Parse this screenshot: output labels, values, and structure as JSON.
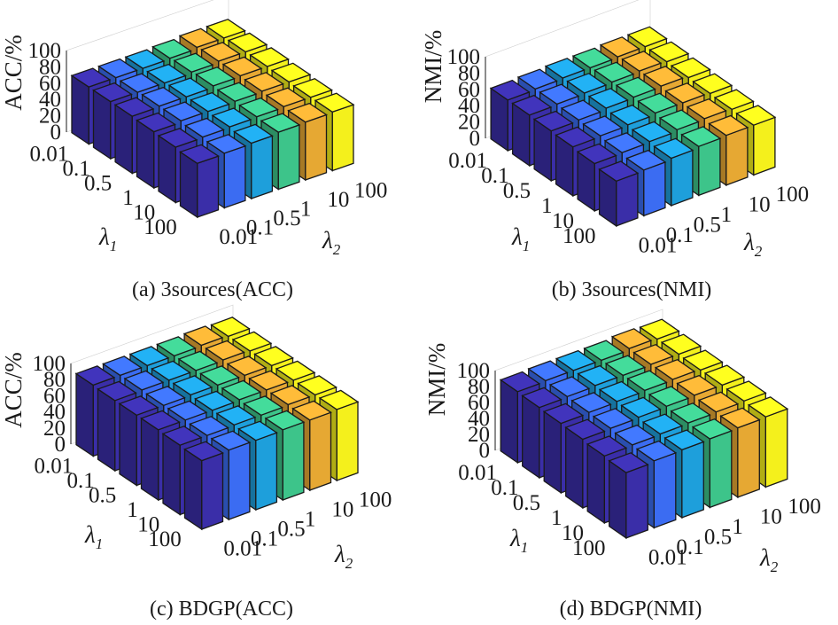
{
  "figure": {
    "palette": [
      "#3a2ea8",
      "#3b6cf2",
      "#1e9fdb",
      "#3dc48a",
      "#e6a833",
      "#f4f01c"
    ],
    "edge_color": "#1a1a1a",
    "colors_by": "lambda2"
  },
  "chart_data": [
    {
      "id": "a",
      "type": "bar3d",
      "caption": "(a) 3sources(ACC)",
      "zlabel": "ACC/%",
      "zlim": [
        0,
        100
      ],
      "zticks": [
        "0",
        "20",
        "40",
        "60",
        "80",
        "100"
      ],
      "x_name": "λ",
      "x_sub": "1",
      "y_name": "λ",
      "y_sub": "2",
      "lambda1": [
        "0.01",
        "0.1",
        "0.5",
        "1",
        "10",
        "100"
      ],
      "lambda2": [
        "0.01",
        "0.1",
        "0.5",
        "1",
        "10",
        "100"
      ],
      "values": [
        [
          70,
          70,
          70,
          71,
          73,
          73
        ],
        [
          70,
          70,
          70,
          72,
          74,
          74
        ],
        [
          70,
          71,
          71,
          73,
          74,
          74
        ],
        [
          69,
          71,
          71,
          72,
          73,
          73
        ],
        [
          68,
          69,
          70,
          71,
          72,
          72
        ],
        [
          66,
          67,
          68,
          70,
          71,
          72
        ]
      ]
    },
    {
      "id": "b",
      "type": "bar3d",
      "caption": "(b) 3sources(NMI)",
      "zlabel": "NMI/%",
      "zlim": [
        0,
        100
      ],
      "zticks": [
        "0",
        "20",
        "40",
        "60",
        "80",
        "100"
      ],
      "x_name": "λ",
      "x_sub": "1",
      "y_name": "λ",
      "y_sub": "2",
      "lambda1": [
        "0.01",
        "0.1",
        "0.5",
        "1",
        "10",
        "100"
      ],
      "lambda2": [
        "0.01",
        "0.1",
        "0.5",
        "1",
        "10",
        "100"
      ],
      "values": [
        [
          62,
          63,
          64,
          64,
          65,
          65
        ],
        [
          62,
          63,
          64,
          65,
          66,
          65
        ],
        [
          61,
          62,
          64,
          65,
          66,
          64
        ],
        [
          60,
          61,
          62,
          64,
          64,
          63
        ],
        [
          58,
          59,
          60,
          62,
          63,
          62
        ],
        [
          55,
          56,
          58,
          60,
          61,
          61
        ]
      ]
    },
    {
      "id": "c",
      "type": "bar3d",
      "caption": "(c) BDGP(ACC)",
      "zlabel": "ACC/%",
      "zlim": [
        0,
        100
      ],
      "zticks": [
        "0",
        "20",
        "40",
        "60",
        "80",
        "100"
      ],
      "x_name": "λ",
      "x_sub": "1",
      "y_name": "λ",
      "y_sub": "2",
      "lambda1": [
        "0.01",
        "0.1",
        "0.5",
        "1",
        "10",
        "100"
      ],
      "lambda2": [
        "0.01",
        "0.1",
        "0.5",
        "1",
        "10",
        "100"
      ],
      "values": [
        [
          88,
          88,
          88,
          88,
          89,
          88
        ],
        [
          87,
          88,
          88,
          88,
          89,
          88
        ],
        [
          87,
          87,
          88,
          88,
          88,
          88
        ],
        [
          87,
          87,
          87,
          88,
          88,
          88
        ],
        [
          86,
          86,
          87,
          87,
          88,
          88
        ],
        [
          85,
          86,
          86,
          87,
          87,
          88
        ]
      ]
    },
    {
      "id": "d",
      "type": "bar3d",
      "caption": "(d) BDGP(NMI)",
      "zlabel": "NMI/%",
      "zlim": [
        0,
        100
      ],
      "zticks": [
        "0",
        "20",
        "40",
        "60",
        "80",
        "100"
      ],
      "x_name": "λ",
      "x_sub": "1",
      "y_name": "λ",
      "y_sub": "2",
      "lambda1": [
        "0.01",
        "0.1",
        "0.5",
        "1",
        "10",
        "100"
      ],
      "lambda2": [
        "0.01",
        "0.1",
        "0.5",
        "1",
        "10",
        "100"
      ],
      "values": [
        [
          89,
          90,
          90,
          90,
          92,
          91
        ],
        [
          88,
          89,
          90,
          90,
          91,
          91
        ],
        [
          87,
          88,
          89,
          90,
          91,
          90
        ],
        [
          86,
          87,
          88,
          89,
          90,
          90
        ],
        [
          84,
          85,
          86,
          87,
          88,
          89
        ],
        [
          82,
          84,
          85,
          86,
          87,
          88
        ]
      ]
    }
  ]
}
